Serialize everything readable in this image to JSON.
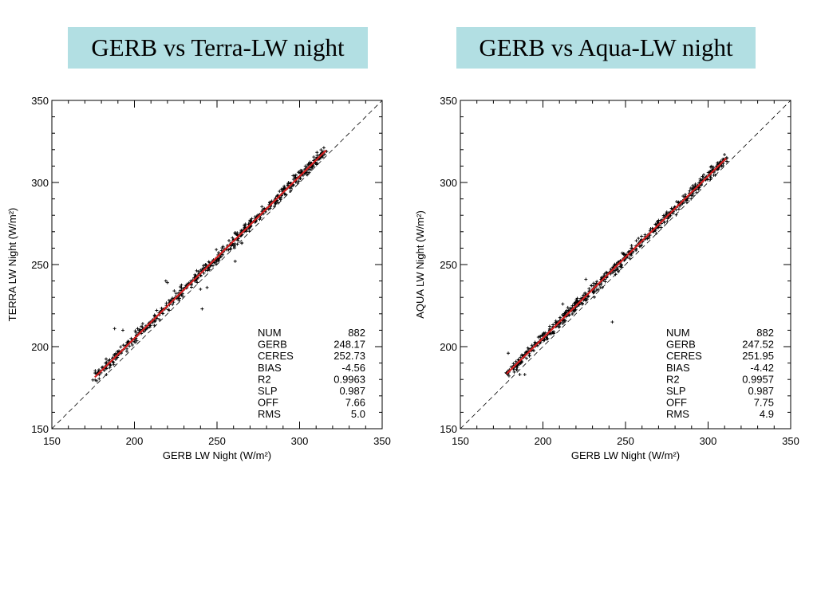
{
  "chart_data": [
    {
      "type": "scatter",
      "title": "GERB vs Terra-LW night",
      "xlabel": "GERB LW Night (W/m²)",
      "ylabel": "TERRA LW Night (W/m²)",
      "xlim": [
        150,
        350
      ],
      "ylim": [
        150,
        350
      ],
      "xticks": [
        "150",
        "200",
        "250",
        "300",
        "350"
      ],
      "yticks": [
        "150",
        "200",
        "250",
        "300",
        "350"
      ],
      "fit_line": {
        "slope": 0.987,
        "offset": 7.66,
        "x_range": [
          176,
          316
        ],
        "color": "#d42020"
      },
      "reference_line": {
        "slope": 1,
        "offset": 0
      },
      "points_range": [
        176,
        316
      ],
      "outliers": [
        [
          188,
          211
        ],
        [
          193,
          210
        ],
        [
          205,
          214
        ],
        [
          219,
          240
        ],
        [
          220,
          239
        ],
        [
          234,
          239
        ],
        [
          241,
          223
        ],
        [
          240,
          235
        ],
        [
          244,
          236
        ],
        [
          257,
          259
        ],
        [
          261,
          252
        ],
        [
          183,
          183
        ],
        [
          185,
          192
        ],
        [
          198,
          205
        ],
        [
          202,
          207
        ],
        [
          212,
          213
        ],
        [
          265,
          263
        ],
        [
          270,
          277
        ],
        [
          282,
          288
        ]
      ],
      "stats": [
        {
          "label": "NUM",
          "value": "882"
        },
        {
          "label": "GERB",
          "value": "248.17"
        },
        {
          "label": "CERES",
          "value": "252.73"
        },
        {
          "label": "BIAS",
          "value": "-4.56"
        },
        {
          "label": "R2",
          "value": "0.9963"
        },
        {
          "label": "SLP",
          "value": "0.987"
        },
        {
          "label": "OFF",
          "value": "7.66"
        },
        {
          "label": "RMS",
          "value": "5.0"
        }
      ],
      "grid": false,
      "marker_color": "#000000"
    },
    {
      "type": "scatter",
      "title": "GERB vs Aqua-LW night",
      "xlabel": "GERB LW Night (W/m²)",
      "ylabel": "AQUA LW Night (W/m²)",
      "xlim": [
        150,
        350
      ],
      "ylim": [
        150,
        350
      ],
      "xticks": [
        "150",
        "200",
        "250",
        "300",
        "350"
      ],
      "yticks": [
        "150",
        "200",
        "250",
        "300",
        "350"
      ],
      "fit_line": {
        "slope": 0.987,
        "offset": 7.75,
        "x_range": [
          178,
          311
        ],
        "color": "#d42020"
      },
      "reference_line": {
        "slope": 1,
        "offset": 0
      },
      "points_range": [
        178,
        311
      ],
      "outliers": [
        [
          179,
          196
        ],
        [
          186,
          183
        ],
        [
          189,
          183
        ],
        [
          212,
          226
        ],
        [
          226,
          241
        ],
        [
          231,
          233
        ],
        [
          236,
          236
        ],
        [
          242,
          247
        ],
        [
          242,
          215
        ],
        [
          244,
          244
        ],
        [
          254,
          260
        ],
        [
          248,
          257
        ],
        [
          262,
          266
        ],
        [
          275,
          282
        ],
        [
          290,
          292
        ],
        [
          184,
          186
        ],
        [
          198,
          202
        ]
      ],
      "stats": [
        {
          "label": "NUM",
          "value": "882"
        },
        {
          "label": "GERB",
          "value": "247.52"
        },
        {
          "label": "CERES",
          "value": "251.95"
        },
        {
          "label": "BIAS",
          "value": "-4.42"
        },
        {
          "label": "R2",
          "value": "0.9957"
        },
        {
          "label": "SLP",
          "value": "0.987"
        },
        {
          "label": "OFF",
          "value": "7.75"
        },
        {
          "label": "RMS",
          "value": "4.9"
        }
      ],
      "grid": false,
      "marker_color": "#000000"
    }
  ]
}
